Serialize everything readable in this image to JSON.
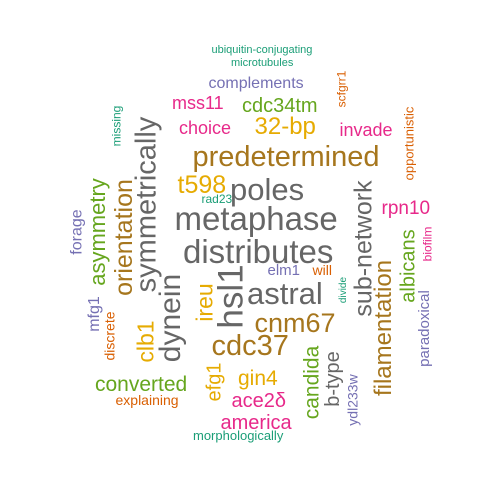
{
  "palette": {
    "teal": "#1b9e77",
    "orange": "#d95f02",
    "purple": "#7570b3",
    "magenta": "#e7298a",
    "green": "#66a61e",
    "gold": "#e6ab02",
    "brown": "#a6761d",
    "gray": "#666666"
  },
  "words": [
    {
      "text": "ubiquitin-conjugating",
      "color": "teal"
    },
    {
      "text": "microtubules",
      "color": "teal"
    },
    {
      "text": "complements",
      "color": "purple"
    },
    {
      "text": "scfgrr1",
      "color": "orange"
    },
    {
      "text": "mss11",
      "color": "magenta"
    },
    {
      "text": "cdc34tm",
      "color": "green"
    },
    {
      "text": "missing",
      "color": "teal"
    },
    {
      "text": "symmetrically",
      "color": "gray"
    },
    {
      "text": "opportunistic",
      "color": "orange"
    },
    {
      "text": "choice",
      "color": "magenta"
    },
    {
      "text": "32-bp",
      "color": "gold"
    },
    {
      "text": "invade",
      "color": "magenta"
    },
    {
      "text": "predetermined",
      "color": "brown"
    },
    {
      "text": "t598",
      "color": "gold"
    },
    {
      "text": "poles",
      "color": "gray"
    },
    {
      "text": "rad23",
      "color": "teal"
    },
    {
      "text": "asymmetry",
      "color": "green"
    },
    {
      "text": "orientation",
      "color": "brown"
    },
    {
      "text": "sub-network",
      "color": "gray"
    },
    {
      "text": "forage",
      "color": "purple"
    },
    {
      "text": "metaphase",
      "color": "gray"
    },
    {
      "text": "rpn10",
      "color": "magenta"
    },
    {
      "text": "distributes",
      "color": "gray"
    },
    {
      "text": "albicans",
      "color": "green"
    },
    {
      "text": "biofilm",
      "color": "magenta"
    },
    {
      "text": "elm1",
      "color": "purple"
    },
    {
      "text": "will",
      "color": "orange"
    },
    {
      "text": "hsl1",
      "color": "gray"
    },
    {
      "text": "astral",
      "color": "gray"
    },
    {
      "text": "divide",
      "color": "teal"
    },
    {
      "text": "mfg1",
      "color": "purple"
    },
    {
      "text": "dynein",
      "color": "gray"
    },
    {
      "text": "ireu",
      "color": "gold"
    },
    {
      "text": "filamentation",
      "color": "brown"
    },
    {
      "text": "paradoxical",
      "color": "purple"
    },
    {
      "text": "discrete",
      "color": "orange"
    },
    {
      "text": "clb1",
      "color": "gold"
    },
    {
      "text": "cnm67",
      "color": "brown"
    },
    {
      "text": "cdc37",
      "color": "brown"
    },
    {
      "text": "candida",
      "color": "green"
    },
    {
      "text": "b-type",
      "color": "gray"
    },
    {
      "text": "ydl233w",
      "color": "purple"
    },
    {
      "text": "gin4",
      "color": "gold"
    },
    {
      "text": "efg1",
      "color": "gold"
    },
    {
      "text": "converted",
      "color": "green"
    },
    {
      "text": "ace2δ",
      "color": "magenta"
    },
    {
      "text": "explaining",
      "color": "orange"
    },
    {
      "text": "america",
      "color": "magenta"
    },
    {
      "text": "morphologically",
      "color": "teal"
    }
  ]
}
